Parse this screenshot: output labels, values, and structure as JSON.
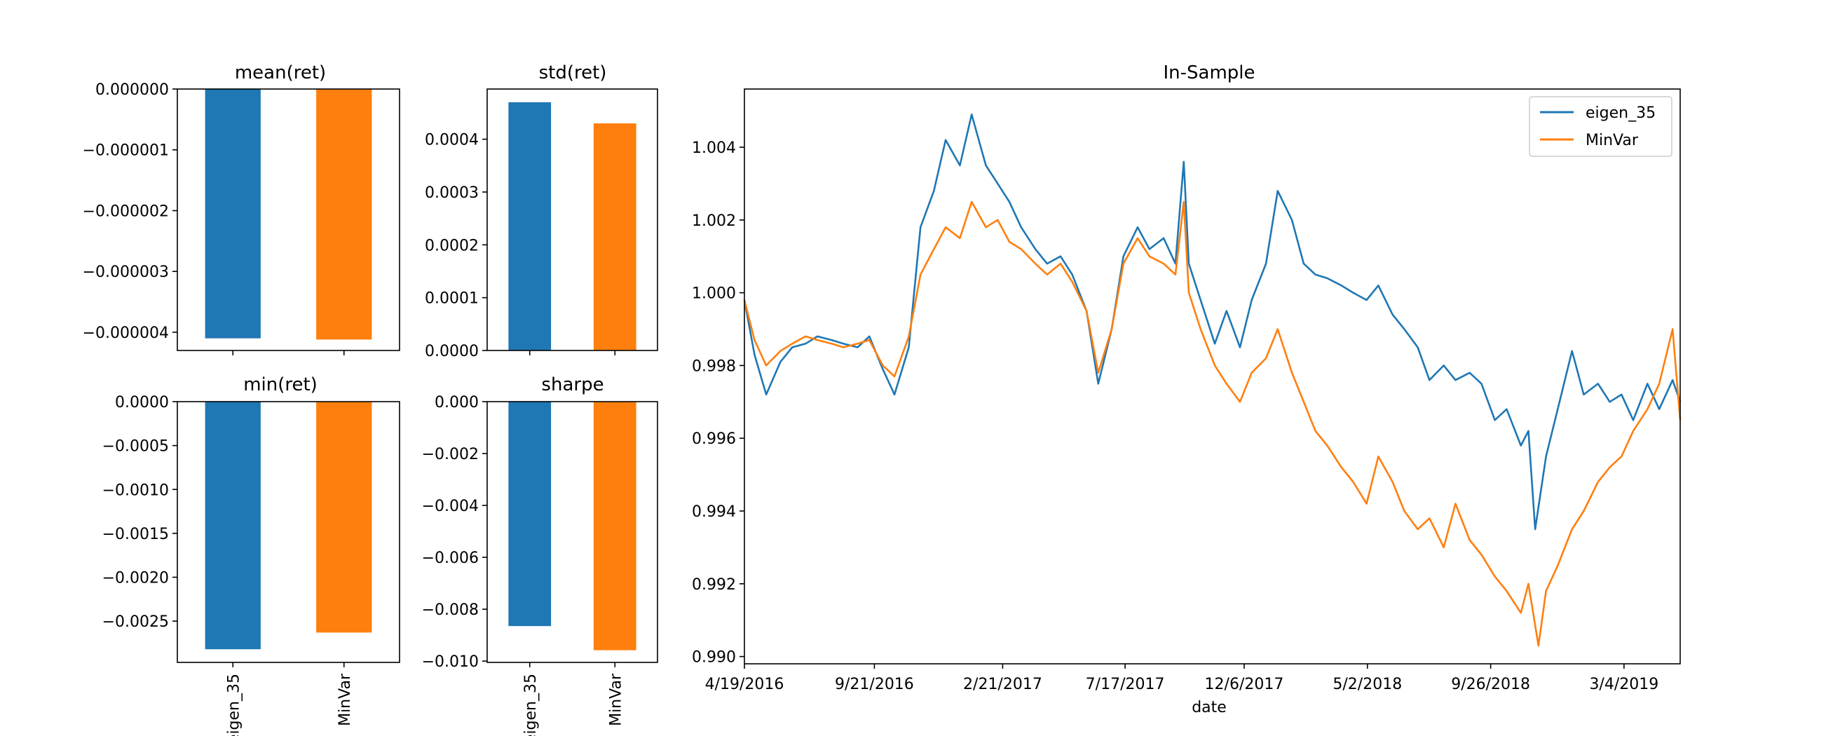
{
  "colors": {
    "series1": "#1f77b4",
    "series2": "#ff7f0e"
  },
  "chart_data": [
    {
      "type": "bar",
      "title": "mean(ret)",
      "categories": [
        "eigen_35",
        "MinVar"
      ],
      "values": [
        -4.1e-06,
        -4.12e-06
      ],
      "ylim": [
        -4.3e-06,
        0.0
      ],
      "yticks": [
        0.0,
        -1e-06,
        -2e-06,
        -3e-06,
        -4e-06
      ],
      "yticklabels": [
        "0.000000",
        "−0.000001",
        "−0.000002",
        "−0.000003",
        "−0.000004"
      ],
      "xticklabels": [],
      "xlabel": "",
      "ylabel": "",
      "grid": false
    },
    {
      "type": "bar",
      "title": "std(ret)",
      "categories": [
        "eigen_35",
        "MinVar"
      ],
      "values": [
        0.00047,
        0.00043
      ],
      "ylim": [
        0.0,
        0.000495
      ],
      "yticks": [
        0.0,
        0.0001,
        0.0002,
        0.0003,
        0.0004
      ],
      "yticklabels": [
        "0.0000",
        "0.0001",
        "0.0002",
        "0.0003",
        "0.0004"
      ],
      "xticklabels": [],
      "xlabel": "",
      "ylabel": "",
      "grid": false
    },
    {
      "type": "bar",
      "title": "min(ret)",
      "categories": [
        "eigen_35",
        "MinVar"
      ],
      "values": [
        -0.00282,
        -0.00263
      ],
      "ylim": [
        -0.00297,
        0.0
      ],
      "yticks": [
        0.0,
        -0.0005,
        -0.001,
        -0.0015,
        -0.002,
        -0.0025
      ],
      "yticklabels": [
        "0.0000",
        "−0.0005",
        "−0.0010",
        "−0.0015",
        "−0.0020",
        "−0.0025"
      ],
      "xticklabels": [
        "eigen_35",
        "MinVar"
      ],
      "xlabel": "",
      "ylabel": "",
      "grid": false
    },
    {
      "type": "bar",
      "title": "sharpe",
      "categories": [
        "eigen_35",
        "MinVar"
      ],
      "values": [
        -0.00865,
        -0.00958
      ],
      "ylim": [
        -0.01005,
        0.0
      ],
      "yticks": [
        0.0,
        -0.002,
        -0.004,
        -0.006,
        -0.008,
        -0.01
      ],
      "yticklabels": [
        "0.000",
        "−0.002",
        "−0.004",
        "−0.006",
        "−0.008",
        "−0.010"
      ],
      "xticklabels": [
        "eigen_35",
        "MinVar"
      ],
      "xlabel": "",
      "ylabel": "",
      "grid": false
    },
    {
      "type": "line",
      "title": "In-Sample",
      "xlabel": "date",
      "ylabel": "",
      "x_start": "4/19/2016",
      "x_end": "5/10/2019",
      "xticks": [
        "4/19/2016",
        "9/21/2016",
        "2/21/2017",
        "7/17/2017",
        "12/6/2017",
        "5/2/2018",
        "9/26/2018",
        "3/4/2019"
      ],
      "yticks": [
        0.99,
        0.992,
        0.994,
        0.996,
        0.998,
        1.0,
        1.002,
        1.004
      ],
      "yticklabels": [
        "0.990",
        "0.992",
        "0.994",
        "0.996",
        "0.998",
        "1.000",
        "1.002",
        "1.004"
      ],
      "ylim": [
        0.9898,
        1.0056
      ],
      "legend": "top-right",
      "grid": false,
      "series": [
        {
          "name": "eigen_35",
          "points": [
            [
              "4/19/2016",
              0.9998
            ],
            [
              "5/1/2016",
              0.9983
            ],
            [
              "5/15/2016",
              0.9972
            ],
            [
              "6/1/2016",
              0.9981
            ],
            [
              "6/15/2016",
              0.9985
            ],
            [
              "7/1/2016",
              0.9986
            ],
            [
              "7/15/2016",
              0.9988
            ],
            [
              "8/1/2016",
              0.9987
            ],
            [
              "8/15/2016",
              0.9986
            ],
            [
              "9/1/2016",
              0.9985
            ],
            [
              "9/15/2016",
              0.9988
            ],
            [
              "10/1/2016",
              0.9979
            ],
            [
              "10/15/2016",
              0.9972
            ],
            [
              "11/1/2016",
              0.9985
            ],
            [
              "11/15/2016",
              1.0018
            ],
            [
              "12/1/2016",
              1.0028
            ],
            [
              "12/15/2016",
              1.0042
            ],
            [
              "1/1/2017",
              1.0035
            ],
            [
              "1/15/2017",
              1.0049
            ],
            [
              "2/1/2017",
              1.0035
            ],
            [
              "2/15/2017",
              1.003
            ],
            [
              "3/1/2017",
              1.0025
            ],
            [
              "3/15/2017",
              1.0018
            ],
            [
              "4/1/2017",
              1.0012
            ],
            [
              "4/15/2017",
              1.0008
            ],
            [
              "5/1/2017",
              1.001
            ],
            [
              "5/15/2017",
              1.0005
            ],
            [
              "6/1/2017",
              0.9995
            ],
            [
              "6/15/2017",
              0.9975
            ],
            [
              "7/1/2017",
              0.999
            ],
            [
              "7/15/2017",
              1.001
            ],
            [
              "8/1/2017",
              1.0018
            ],
            [
              "8/15/2017",
              1.0012
            ],
            [
              "9/1/2017",
              1.0015
            ],
            [
              "9/15/2017",
              1.0008
            ],
            [
              "9/25/2017",
              1.0036
            ],
            [
              "10/1/2017",
              1.0008
            ],
            [
              "10/15/2017",
              0.9998
            ],
            [
              "11/1/2017",
              0.9986
            ],
            [
              "11/15/2017",
              0.9995
            ],
            [
              "12/1/2017",
              0.9985
            ],
            [
              "12/15/2017",
              0.9998
            ],
            [
              "1/1/2018",
              1.0008
            ],
            [
              "1/15/2018",
              1.0028
            ],
            [
              "2/1/2018",
              1.002
            ],
            [
              "2/15/2018",
              1.0008
            ],
            [
              "3/1/2018",
              1.0005
            ],
            [
              "3/15/2018",
              1.0004
            ],
            [
              "4/1/2018",
              1.0002
            ],
            [
              "4/15/2018",
              1.0
            ],
            [
              "5/1/2018",
              0.9998
            ],
            [
              "5/15/2018",
              1.0002
            ],
            [
              "6/1/2018",
              0.9994
            ],
            [
              "6/15/2018",
              0.999
            ],
            [
              "7/1/2018",
              0.9985
            ],
            [
              "7/15/2018",
              0.9976
            ],
            [
              "8/1/2018",
              0.998
            ],
            [
              "8/15/2018",
              0.9976
            ],
            [
              "9/1/2018",
              0.9978
            ],
            [
              "9/15/2018",
              0.9975
            ],
            [
              "10/1/2018",
              0.9965
            ],
            [
              "10/15/2018",
              0.9968
            ],
            [
              "11/1/2018",
              0.9958
            ],
            [
              "11/10/2018",
              0.9962
            ],
            [
              "11/18/2018",
              0.9935
            ],
            [
              "12/1/2018",
              0.9955
            ],
            [
              "12/15/2018",
              0.9968
            ],
            [
              "1/1/2019",
              0.9984
            ],
            [
              "1/15/2019",
              0.9972
            ],
            [
              "2/1/2019",
              0.9975
            ],
            [
              "2/15/2019",
              0.997
            ],
            [
              "3/1/2019",
              0.9972
            ],
            [
              "3/15/2019",
              0.9965
            ],
            [
              "4/1/2019",
              0.9975
            ],
            [
              "4/15/2019",
              0.9968
            ],
            [
              "5/1/2019",
              0.9976
            ],
            [
              "5/10/2019",
              0.997
            ]
          ]
        },
        {
          "name": "MinVar",
          "points": [
            [
              "4/19/2016",
              0.9998
            ],
            [
              "5/1/2016",
              0.9987
            ],
            [
              "5/15/2016",
              0.998
            ],
            [
              "6/1/2016",
              0.9984
            ],
            [
              "6/15/2016",
              0.9986
            ],
            [
              "7/1/2016",
              0.9988
            ],
            [
              "7/15/2016",
              0.9987
            ],
            [
              "8/1/2016",
              0.9986
            ],
            [
              "8/15/2016",
              0.9985
            ],
            [
              "9/1/2016",
              0.9986
            ],
            [
              "9/15/2016",
              0.9987
            ],
            [
              "10/1/2016",
              0.998
            ],
            [
              "10/15/2016",
              0.9977
            ],
            [
              "11/1/2016",
              0.9988
            ],
            [
              "11/15/2016",
              1.0005
            ],
            [
              "12/1/2016",
              1.0012
            ],
            [
              "12/15/2016",
              1.0018
            ],
            [
              "1/1/2017",
              1.0015
            ],
            [
              "1/15/2017",
              1.0025
            ],
            [
              "2/1/2017",
              1.0018
            ],
            [
              "2/15/2017",
              1.002
            ],
            [
              "3/1/2017",
              1.0014
            ],
            [
              "3/15/2017",
              1.0012
            ],
            [
              "4/1/2017",
              1.0008
            ],
            [
              "4/15/2017",
              1.0005
            ],
            [
              "5/1/2017",
              1.0008
            ],
            [
              "5/15/2017",
              1.0003
            ],
            [
              "6/1/2017",
              0.9995
            ],
            [
              "6/15/2017",
              0.9978
            ],
            [
              "7/1/2017",
              0.999
            ],
            [
              "7/15/2017",
              1.0008
            ],
            [
              "8/1/2017",
              1.0015
            ],
            [
              "8/15/2017",
              1.001
            ],
            [
              "9/1/2017",
              1.0008
            ],
            [
              "9/15/2017",
              1.0005
            ],
            [
              "9/25/2017",
              1.0025
            ],
            [
              "10/1/2017",
              1.0
            ],
            [
              "10/15/2017",
              0.999
            ],
            [
              "11/1/2017",
              0.998
            ],
            [
              "11/15/2017",
              0.9975
            ],
            [
              "12/1/2017",
              0.997
            ],
            [
              "12/15/2017",
              0.9978
            ],
            [
              "1/1/2018",
              0.9982
            ],
            [
              "1/15/2018",
              0.999
            ],
            [
              "2/1/2018",
              0.9978
            ],
            [
              "2/15/2018",
              0.997
            ],
            [
              "3/1/2018",
              0.9962
            ],
            [
              "3/15/2018",
              0.9958
            ],
            [
              "4/1/2018",
              0.9952
            ],
            [
              "4/15/2018",
              0.9948
            ],
            [
              "5/1/2018",
              0.9942
            ],
            [
              "5/15/2018",
              0.9955
            ],
            [
              "6/1/2018",
              0.9948
            ],
            [
              "6/15/2018",
              0.994
            ],
            [
              "7/1/2018",
              0.9935
            ],
            [
              "7/15/2018",
              0.9938
            ],
            [
              "8/1/2018",
              0.993
            ],
            [
              "8/15/2018",
              0.9942
            ],
            [
              "9/1/2018",
              0.9932
            ],
            [
              "9/15/2018",
              0.9928
            ],
            [
              "10/1/2018",
              0.9922
            ],
            [
              "10/15/2018",
              0.9918
            ],
            [
              "11/1/2018",
              0.9912
            ],
            [
              "11/10/2018",
              0.992
            ],
            [
              "11/22/2018",
              0.9903
            ],
            [
              "12/1/2018",
              0.9918
            ],
            [
              "12/15/2018",
              0.9925
            ],
            [
              "1/1/2019",
              0.9935
            ],
            [
              "1/15/2019",
              0.994
            ],
            [
              "2/1/2019",
              0.9948
            ],
            [
              "2/15/2019",
              0.9952
            ],
            [
              "3/1/2019",
              0.9955
            ],
            [
              "3/15/2019",
              0.9962
            ],
            [
              "4/1/2019",
              0.9968
            ],
            [
              "4/15/2019",
              0.9975
            ],
            [
              "5/1/2019",
              0.999
            ],
            [
              "5/10/2019",
              0.9965
            ]
          ]
        }
      ]
    }
  ]
}
